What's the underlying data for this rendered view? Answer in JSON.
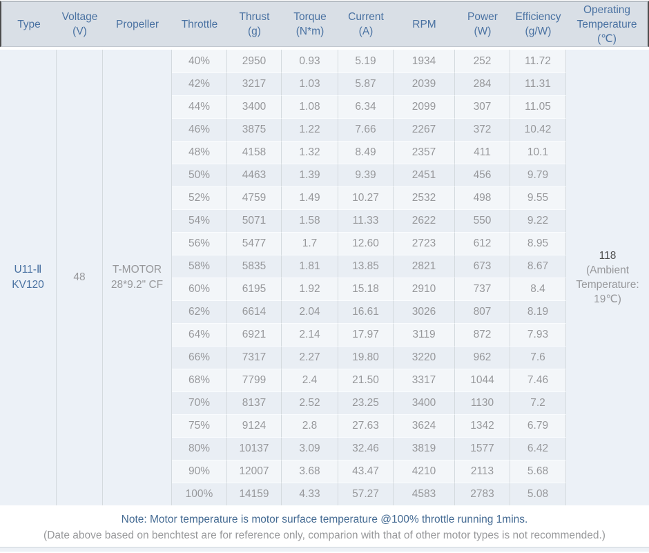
{
  "colors": {
    "header_bg": "#d9dfe6",
    "header_text": "#4a72a2",
    "row_light": "#f3f6f9",
    "row_dark": "#e9eef4",
    "merged_cell_bg": "#ecf1f7",
    "value_text": "#97989b",
    "type_text": "#4a72a2",
    "note_primary_text": "#456b93",
    "note_secondary_text": "#98999b"
  },
  "chart_data": {
    "type": "table",
    "columns": [
      "Type",
      "Voltage (V)",
      "Propeller",
      "Throttle",
      "Thrust (g)",
      "Torque (N*m)",
      "Current (A)",
      "RPM",
      "Power (W)",
      "Efficiency (g/W)",
      "Operating Temperature (℃)"
    ],
    "header_lines": [
      [
        "Type"
      ],
      [
        "Voltage",
        "(V)"
      ],
      [
        "Propeller"
      ],
      [
        "Throttle"
      ],
      [
        "Thrust",
        "(g)"
      ],
      [
        "Torque",
        "(N*m)"
      ],
      [
        "Current",
        "(A)"
      ],
      [
        "RPM"
      ],
      [
        "Power",
        "(W)"
      ],
      [
        "Efficiency",
        "(g/W)"
      ],
      [
        "Operating",
        "Temperature",
        "(℃)"
      ]
    ],
    "row_keys": [
      "throttle",
      "thrust",
      "torque",
      "current",
      "rpm",
      "power",
      "efficiency"
    ],
    "merged": {
      "type_lines": [
        "U11-Ⅱ",
        "KV120"
      ],
      "voltage": "48",
      "propeller_lines": [
        "T-MOTOR",
        "28*9.2\" CF"
      ],
      "operating_temperature": {
        "value": "118",
        "note_lines": [
          "(Ambient",
          "Temperature:",
          "19℃)"
        ]
      }
    },
    "rows": [
      [
        "40%",
        "2950",
        "0.93",
        "5.19",
        "1934",
        "252",
        "11.72"
      ],
      [
        "42%",
        "3217",
        "1.03",
        "5.87",
        "2039",
        "284",
        "11.31"
      ],
      [
        "44%",
        "3400",
        "1.08",
        "6.34",
        "2099",
        "307",
        "11.05"
      ],
      [
        "46%",
        "3875",
        "1.22",
        "7.66",
        "2267",
        "372",
        "10.42"
      ],
      [
        "48%",
        "4158",
        "1.32",
        "8.49",
        "2357",
        "411",
        "10.1"
      ],
      [
        "50%",
        "4463",
        "1.39",
        "9.39",
        "2451",
        "456",
        "9.79"
      ],
      [
        "52%",
        "4759",
        "1.49",
        "10.27",
        "2532",
        "498",
        "9.55"
      ],
      [
        "54%",
        "5071",
        "1.58",
        "11.33",
        "2622",
        "550",
        "9.22"
      ],
      [
        "56%",
        "5477",
        "1.7",
        "12.60",
        "2723",
        "612",
        "8.95"
      ],
      [
        "58%",
        "5835",
        "1.81",
        "13.85",
        "2821",
        "673",
        "8.67"
      ],
      [
        "60%",
        "6195",
        "1.92",
        "15.18",
        "2910",
        "737",
        "8.4"
      ],
      [
        "62%",
        "6614",
        "2.04",
        "16.61",
        "3026",
        "807",
        "8.19"
      ],
      [
        "64%",
        "6921",
        "2.14",
        "17.97",
        "3119",
        "872",
        "7.93"
      ],
      [
        "66%",
        "7317",
        "2.27",
        "19.80",
        "3220",
        "962",
        "7.6"
      ],
      [
        "68%",
        "7799",
        "2.4",
        "21.50",
        "3317",
        "1044",
        "7.46"
      ],
      [
        "70%",
        "8137",
        "2.52",
        "23.25",
        "3400",
        "1130",
        "7.2"
      ],
      [
        "75%",
        "9124",
        "2.8",
        "27.63",
        "3624",
        "1342",
        "6.79"
      ],
      [
        "80%",
        "10137",
        "3.09",
        "32.46",
        "3819",
        "1577",
        "6.42"
      ],
      [
        "90%",
        "12007",
        "3.68",
        "43.47",
        "4210",
        "2113",
        "5.68"
      ],
      [
        "100%",
        "14159",
        "4.33",
        "57.27",
        "4583",
        "2783",
        "5.08"
      ]
    ]
  },
  "notes": {
    "line1": "Note: Motor temperature is motor surface temperature @100% throttle running 1mins.",
    "line2": "(Date above based on benchtest are for reference only, comparion with that of other motor types is not recommended.)"
  }
}
